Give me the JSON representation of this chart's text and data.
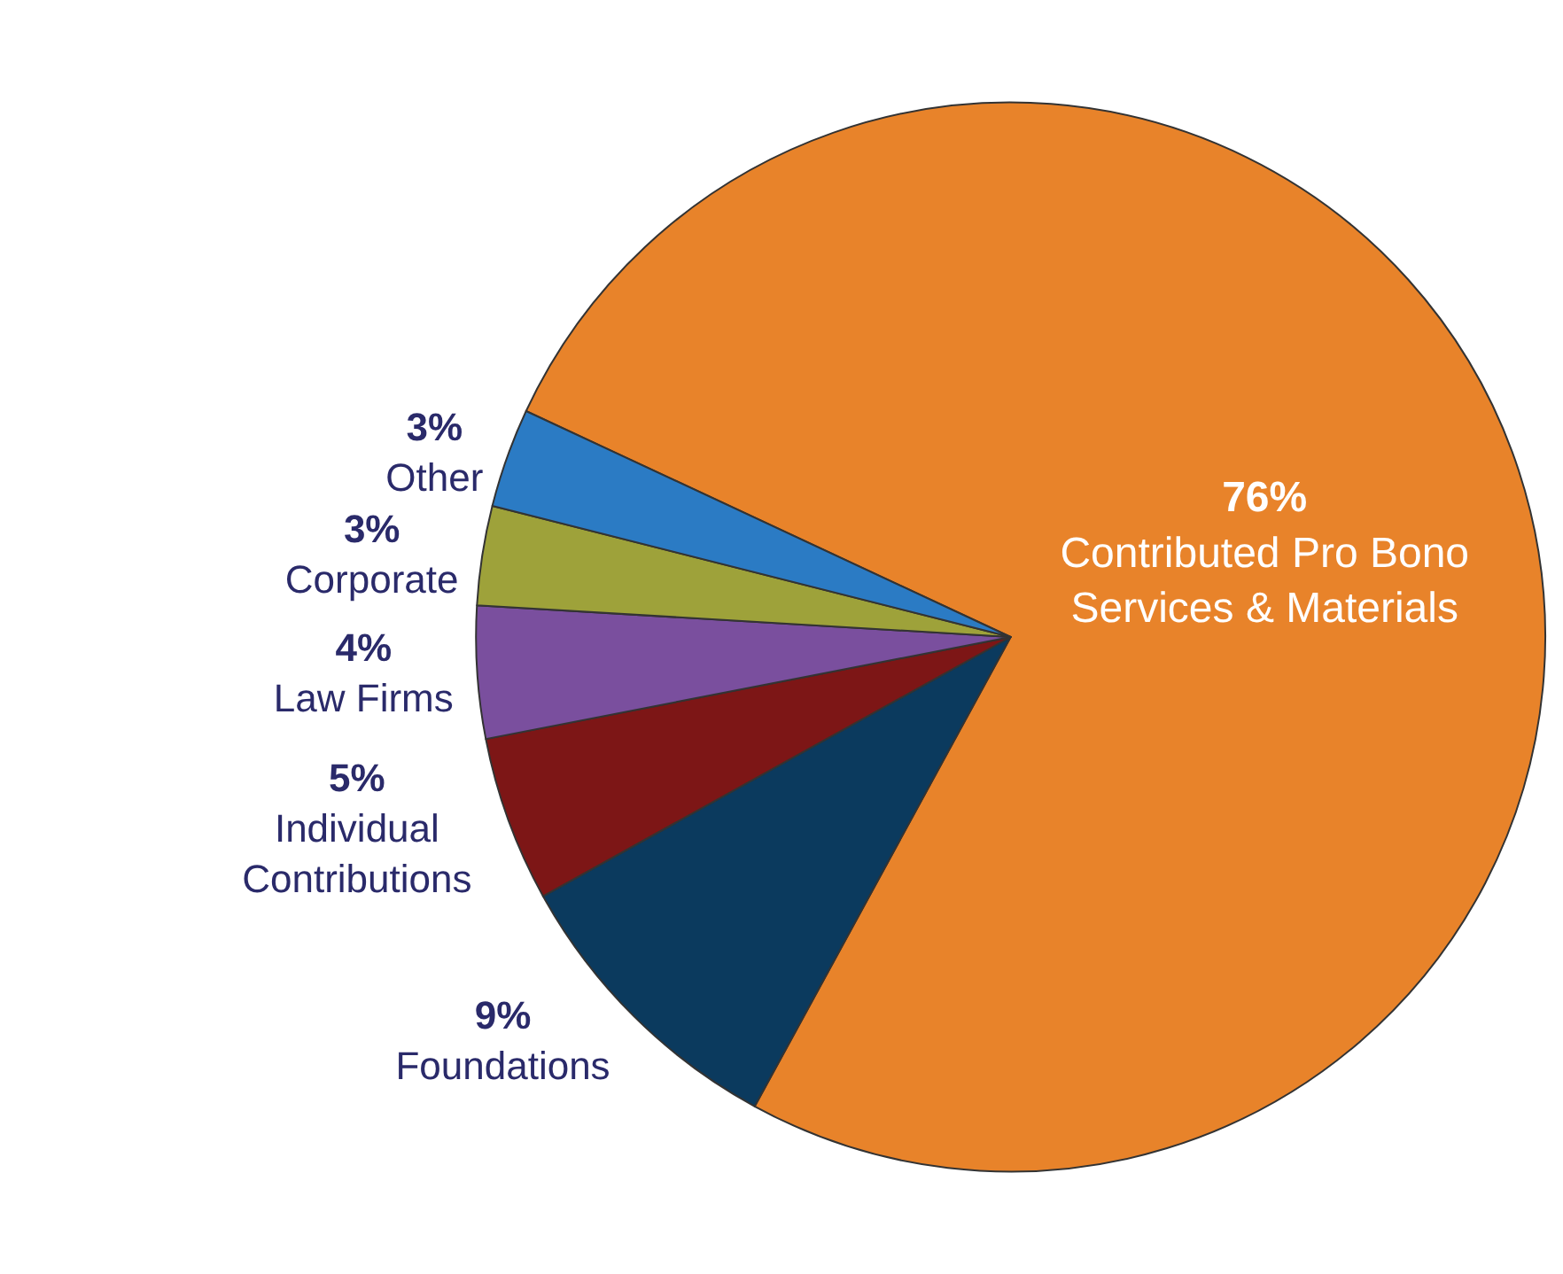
{
  "chart_data": {
    "type": "pie",
    "categories": [
      "Contributed Pro Bono Services & Materials",
      "Foundations",
      "Individual Contributions",
      "Law Firms",
      "Corporate",
      "Other"
    ],
    "values": [
      76,
      9,
      5,
      4,
      3,
      3
    ],
    "colors": [
      "#e8832a",
      "#0b3a5e",
      "#7d1616",
      "#7a4f9e",
      "#9ea23a",
      "#2b7bc4"
    ],
    "value_labels": [
      "76%",
      "9%",
      "5%",
      "4%",
      "3%",
      "3%"
    ]
  }
}
